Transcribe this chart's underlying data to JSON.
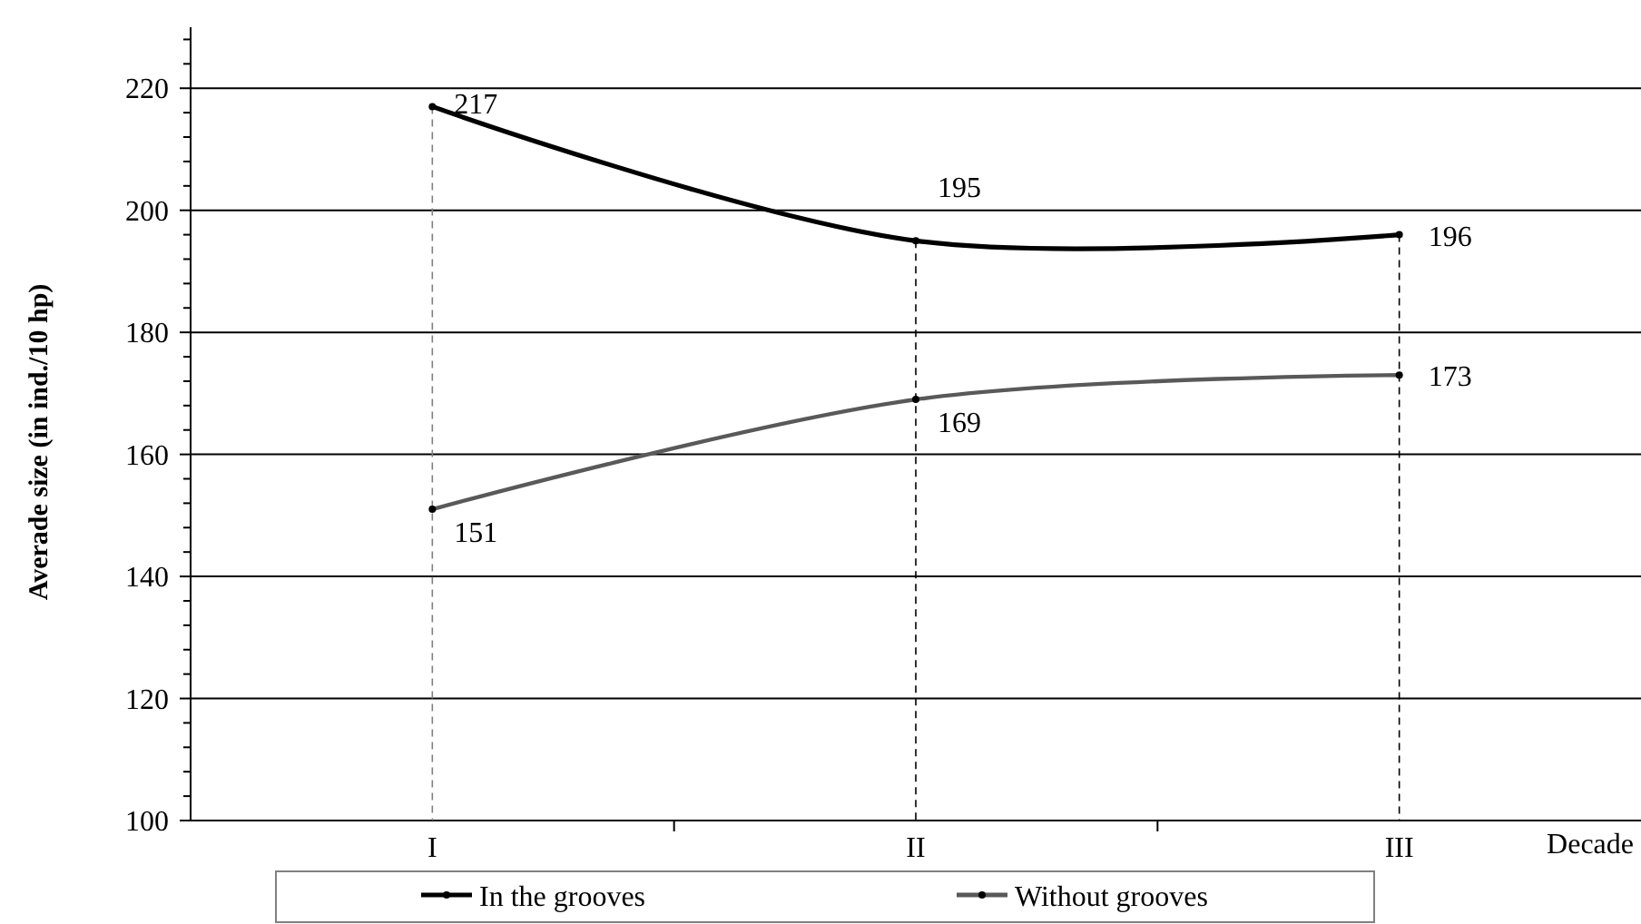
{
  "chart_data": {
    "type": "line",
    "xlabel": "Decade",
    "ylabel": "Averade size (in ind./10 hp)",
    "categories": [
      "I",
      "II",
      "III"
    ],
    "series": [
      {
        "name": "In the grooves",
        "color": "#000000",
        "values": [
          217,
          195,
          196
        ]
      },
      {
        "name": "Without grooves",
        "color": "#595959",
        "values": [
          151,
          169,
          173
        ]
      }
    ],
    "ylim": [
      100,
      230
    ],
    "yticks": [
      100,
      {
        "value": 104,
        "label": null
      },
      {
        "value": 108,
        "label": null
      },
      {
        "value": 112,
        "label": null
      },
      {
        "value": 116,
        "label": null
      },
      120,
      {
        "value": 124,
        "label": null
      },
      {
        "value": 128,
        "label": null
      },
      {
        "value": 132,
        "label": null
      },
      {
        "value": 136,
        "label": null
      },
      140,
      {
        "value": 144,
        "label": null
      },
      {
        "value": 148,
        "label": null
      },
      {
        "value": 152,
        "label": null
      },
      {
        "value": 156,
        "label": null
      },
      160,
      {
        "value": 164,
        "label": null
      },
      {
        "value": 168,
        "label": null
      },
      {
        "value": 172,
        "label": null
      },
      {
        "value": 176,
        "label": null
      },
      180,
      {
        "value": 184,
        "label": null
      },
      {
        "value": 188,
        "label": null
      },
      {
        "value": 192,
        "label": null
      },
      {
        "value": 196,
        "label": null
      },
      200,
      {
        "value": 204,
        "label": null
      },
      {
        "value": 208,
        "label": null
      },
      {
        "value": 212,
        "label": null
      },
      {
        "value": 216,
        "label": null
      },
      220,
      {
        "value": 224,
        "label": null
      },
      {
        "value": 228,
        "label": null
      }
    ],
    "grid": "y",
    "legend": "bottom",
    "marker": "circle",
    "line_style": "solid",
    "data_labels": true,
    "ref_lines": [
      {
        "axis": "x",
        "value": "I",
        "line_style": "dashed",
        "color": "#808080"
      },
      {
        "axis": "x",
        "value": "II",
        "line_style": "dashed",
        "color": "#000000"
      },
      {
        "axis": "x",
        "value": "III",
        "line_style": "dashed",
        "color": "#000000"
      }
    ]
  }
}
